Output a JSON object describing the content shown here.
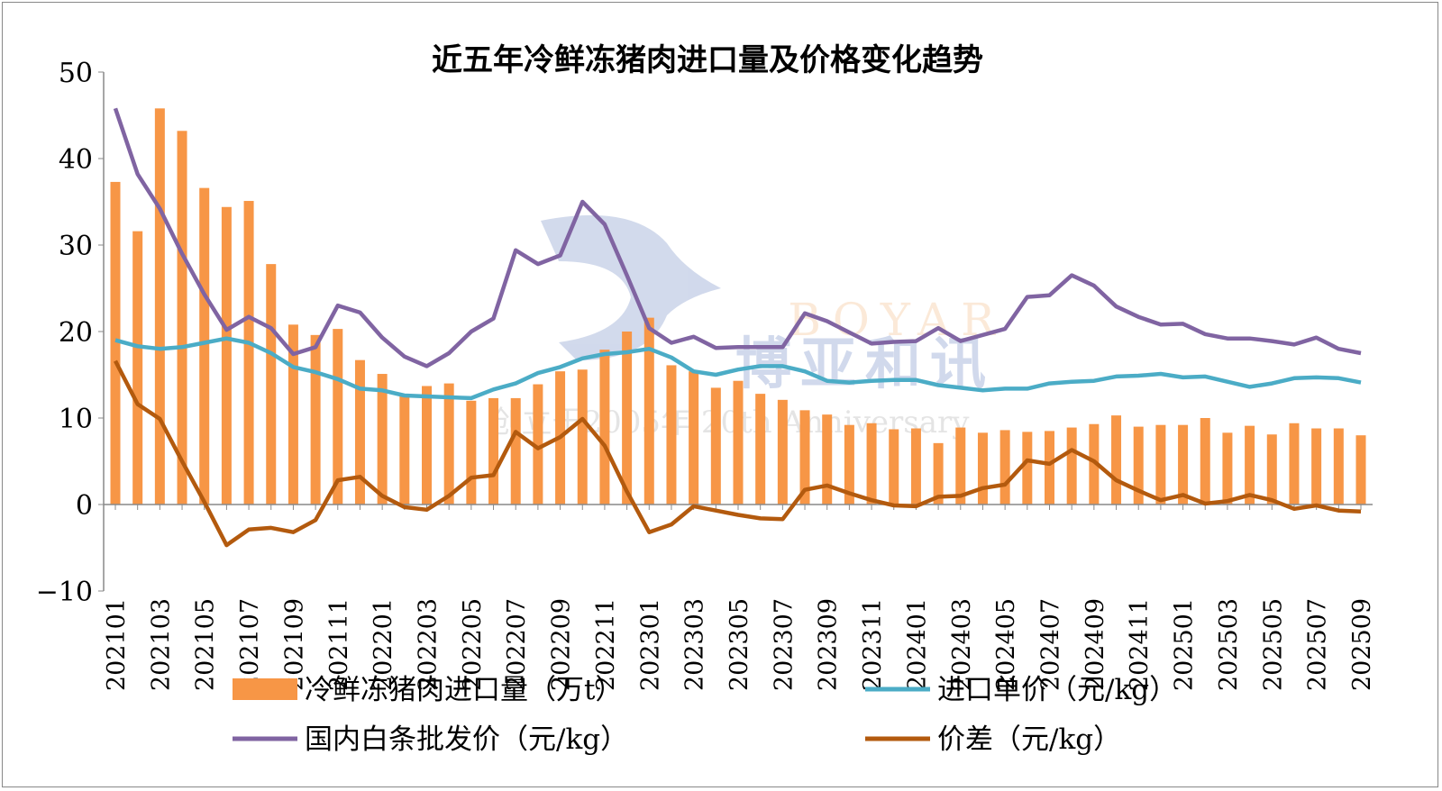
{
  "chart_data": {
    "type": "bar+line",
    "title": "近五年冷鲜冻猪肉进口量及价格变化趋势",
    "xlabel": "",
    "ylabel": "",
    "ylim": [
      -10,
      50
    ],
    "yticks": [
      -10,
      0,
      10,
      20,
      30,
      40,
      50
    ],
    "grid": false,
    "legend_placement": "bottom",
    "categories": [
      "202101",
      "202102",
      "202103",
      "202104",
      "202105",
      "202106",
      "202107",
      "202108",
      "202109",
      "202110",
      "202111",
      "202112",
      "202201",
      "202202",
      "202203",
      "202204",
      "202205",
      "202206",
      "202207",
      "202208",
      "202209",
      "202210",
      "202211",
      "202212",
      "202301",
      "202302",
      "202303",
      "202304",
      "202305",
      "202306",
      "202307",
      "202308",
      "202309",
      "202310",
      "202311",
      "202312",
      "202401",
      "202402",
      "202403",
      "202404",
      "202405",
      "202406",
      "202407",
      "202408",
      "202409",
      "202410",
      "202411",
      "202412",
      "202501",
      "202502",
      "202503",
      "202504",
      "202505",
      "202506",
      "202507",
      "202508",
      "202509"
    ],
    "series": [
      {
        "name": "冷鲜冻猪肉进口量（万t）",
        "type": "bar",
        "color": "#F79646",
        "values": [
          37.3,
          31.6,
          45.8,
          43.2,
          36.6,
          34.4,
          35.1,
          27.8,
          20.8,
          19.6,
          20.3,
          16.7,
          15.1,
          12.5,
          13.7,
          14.0,
          12.0,
          12.3,
          12.3,
          13.9,
          15.4,
          15.6,
          17.9,
          20.0,
          21.6,
          16.1,
          15.4,
          13.5,
          14.3,
          12.8,
          12.1,
          10.9,
          10.4,
          9.2,
          9.4,
          8.7,
          8.8,
          7.1,
          8.9,
          8.3,
          8.6,
          8.4,
          8.5,
          8.9,
          9.3,
          10.3,
          9.0,
          9.2,
          9.2,
          10.0,
          8.3,
          9.1,
          8.1,
          9.4,
          8.8,
          8.8,
          8.0
        ]
      },
      {
        "name": "进口单价（元/kg）",
        "type": "line",
        "color": "#4BACC6",
        "values": [
          19.0,
          18.3,
          18.0,
          18.2,
          18.7,
          19.2,
          18.7,
          17.5,
          15.9,
          15.3,
          14.5,
          13.4,
          13.2,
          12.6,
          12.5,
          12.4,
          12.3,
          13.3,
          14.0,
          15.2,
          15.9,
          16.9,
          17.4,
          17.6,
          18.0,
          17.0,
          15.4,
          15.0,
          15.6,
          16.0,
          16.0,
          15.4,
          14.3,
          14.1,
          14.3,
          14.4,
          14.4,
          13.8,
          13.5,
          13.2,
          13.4,
          13.4,
          14.0,
          14.2,
          14.3,
          14.8,
          14.9,
          15.1,
          14.7,
          14.8,
          14.2,
          13.6,
          14.0,
          14.6,
          14.7,
          14.6,
          14.1
        ]
      },
      {
        "name": "国内白条批发价（元/kg）",
        "type": "line",
        "color": "#8064A2",
        "values": [
          45.8,
          38.2,
          34.2,
          29.0,
          24.3,
          20.2,
          21.7,
          20.4,
          17.4,
          18.2,
          23.0,
          22.2,
          19.3,
          17.1,
          16.0,
          17.5,
          20.0,
          21.5,
          29.4,
          27.8,
          28.8,
          35.0,
          32.4,
          26.5,
          20.4,
          18.7,
          19.4,
          18.1,
          18.2,
          18.2,
          18.2,
          22.1,
          21.2,
          19.9,
          18.6,
          18.8,
          18.9,
          20.4,
          18.9,
          19.6,
          20.3,
          24.0,
          24.2,
          26.5,
          25.3,
          22.9,
          21.7,
          20.8,
          20.9,
          19.7,
          19.2,
          19.2,
          18.9,
          18.5,
          19.3,
          18.0,
          17.5
        ]
      },
      {
        "name": "价差（元/kg）",
        "type": "line",
        "color": "#B35A0E",
        "values": [
          16.6,
          11.6,
          9.9,
          5.0,
          0.3,
          -4.7,
          -2.9,
          -2.7,
          -3.2,
          -1.8,
          2.8,
          3.2,
          1.0,
          -0.3,
          -0.6,
          1.0,
          3.1,
          3.4,
          8.4,
          6.5,
          7.8,
          9.9,
          6.8,
          1.5,
          -3.2,
          -2.3,
          -0.2,
          -0.7,
          -1.2,
          -1.6,
          -1.7,
          1.7,
          2.2,
          1.3,
          0.5,
          -0.1,
          -0.2,
          0.9,
          1.0,
          1.9,
          2.3,
          5.1,
          4.7,
          6.3,
          5.0,
          2.8,
          1.6,
          0.5,
          1.1,
          0.1,
          0.4,
          1.1,
          0.5,
          -0.5,
          -0.1,
          -0.7,
          -0.8
        ]
      }
    ]
  },
  "watermark": {
    "brand": "BOYAR",
    "name": "博亚和讯",
    "tagline": "创立于2005年 20th Anniversary"
  }
}
